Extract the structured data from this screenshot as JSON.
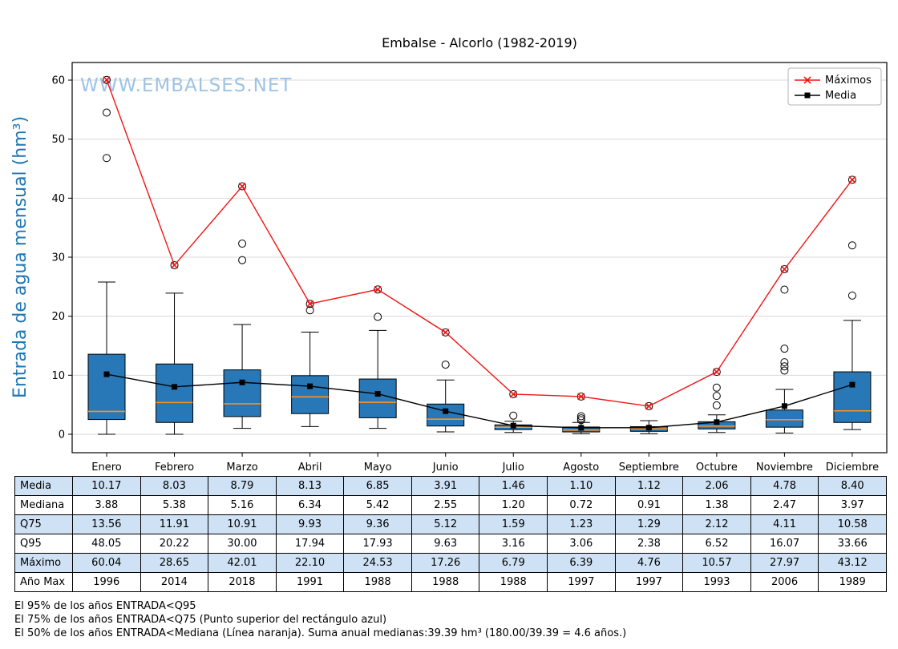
{
  "chart_data": {
    "type": "boxplot",
    "title": "Embalse - Alcorlo (1982-2019)",
    "ylabel": "Entrada de agua mensual (hm³)",
    "watermark": "WWW.EMBALSES.NET",
    "ylim": [
      -3,
      63
    ],
    "yticks": [
      0,
      10,
      20,
      30,
      40,
      50,
      60
    ],
    "grid": "horizontal",
    "legend_position": "top-right",
    "categories": [
      "Enero",
      "Febrero",
      "Marzo",
      "Abril",
      "Mayo",
      "Junio",
      "Julio",
      "Agosto",
      "Septiembre",
      "Octubre",
      "Noviembre",
      "Diciembre"
    ],
    "series": [
      {
        "name": "Máximos",
        "marker": "x",
        "color": "#ef1515",
        "values": [
          60.04,
          28.65,
          42.01,
          22.1,
          24.53,
          17.26,
          6.79,
          6.39,
          4.76,
          10.57,
          27.97,
          43.12
        ]
      },
      {
        "name": "Media",
        "marker": "square",
        "color": "#000000",
        "values": [
          10.17,
          8.03,
          8.79,
          8.13,
          6.85,
          3.91,
          1.46,
          1.1,
          1.12,
          2.06,
          4.78,
          8.4
        ]
      }
    ],
    "boxes": [
      {
        "month": "Enero",
        "q1": 2.5,
        "median": 3.88,
        "q3": 13.56,
        "lo": 0.0,
        "hi": 25.8,
        "outliers": [
          46.8,
          54.5,
          60.04
        ]
      },
      {
        "month": "Febrero",
        "q1": 2.0,
        "median": 5.38,
        "q3": 11.91,
        "lo": 0.0,
        "hi": 23.9,
        "outliers": [
          28.65
        ]
      },
      {
        "month": "Marzo",
        "q1": 3.0,
        "median": 5.16,
        "q3": 10.91,
        "lo": 1.0,
        "hi": 18.6,
        "outliers": [
          29.5,
          32.3,
          42.01
        ]
      },
      {
        "month": "Abril",
        "q1": 3.5,
        "median": 6.34,
        "q3": 9.93,
        "lo": 1.3,
        "hi": 17.3,
        "outliers": [
          21.0,
          22.1
        ]
      },
      {
        "month": "Mayo",
        "q1": 2.8,
        "median": 5.42,
        "q3": 9.36,
        "lo": 1.0,
        "hi": 17.6,
        "outliers": [
          19.9,
          24.53
        ]
      },
      {
        "month": "Junio",
        "q1": 1.4,
        "median": 2.55,
        "q3": 5.12,
        "lo": 0.4,
        "hi": 9.2,
        "outliers": [
          11.8,
          17.26
        ]
      },
      {
        "month": "Julio",
        "q1": 0.8,
        "median": 1.2,
        "q3": 1.59,
        "lo": 0.3,
        "hi": 2.2,
        "outliers": [
          3.16,
          6.79
        ]
      },
      {
        "month": "Agosto",
        "q1": 0.4,
        "median": 0.72,
        "q3": 1.23,
        "lo": 0.1,
        "hi": 2.0,
        "outliers": [
          2.4,
          2.7,
          3.06,
          6.39
        ]
      },
      {
        "month": "Septiembre",
        "q1": 0.5,
        "median": 0.91,
        "q3": 1.29,
        "lo": 0.1,
        "hi": 2.3,
        "outliers": [
          4.76
        ]
      },
      {
        "month": "Octubre",
        "q1": 0.9,
        "median": 1.38,
        "q3": 2.12,
        "lo": 0.3,
        "hi": 3.3,
        "outliers": [
          4.9,
          6.5,
          7.9,
          10.57
        ]
      },
      {
        "month": "Noviembre",
        "q1": 1.2,
        "median": 2.47,
        "q3": 4.11,
        "lo": 0.2,
        "hi": 7.6,
        "outliers": [
          10.8,
          11.5,
          12.2,
          14.5,
          24.5,
          27.97
        ]
      },
      {
        "month": "Diciembre",
        "q1": 2.0,
        "median": 3.97,
        "q3": 10.58,
        "lo": 0.8,
        "hi": 19.3,
        "outliers": [
          23.5,
          32.0,
          43.12
        ]
      }
    ],
    "colors": {
      "box_fill": "#2878b8",
      "median": "#ff9023",
      "grid": "#d9d9d9",
      "axis": "#000000",
      "ylabel": "#1f77b4",
      "watermark": "#9dc3e6",
      "table_alt_row": "#cfe2f5"
    }
  },
  "table": {
    "row_labels": [
      "Media",
      "Mediana",
      "Q75",
      "Q95",
      "Máximo",
      "Año Max"
    ],
    "rows": [
      [
        "10.17",
        "8.03",
        "8.79",
        "8.13",
        "6.85",
        "3.91",
        "1.46",
        "1.10",
        "1.12",
        "2.06",
        "4.78",
        "8.40"
      ],
      [
        "3.88",
        "5.38",
        "5.16",
        "6.34",
        "5.42",
        "2.55",
        "1.20",
        "0.72",
        "0.91",
        "1.38",
        "2.47",
        "3.97"
      ],
      [
        "13.56",
        "11.91",
        "10.91",
        "9.93",
        "9.36",
        "5.12",
        "1.59",
        "1.23",
        "1.29",
        "2.12",
        "4.11",
        "10.58"
      ],
      [
        "48.05",
        "20.22",
        "30.00",
        "17.94",
        "17.93",
        "9.63",
        "3.16",
        "3.06",
        "2.38",
        "6.52",
        "16.07",
        "33.66"
      ],
      [
        "60.04",
        "28.65",
        "42.01",
        "22.10",
        "24.53",
        "17.26",
        "6.79",
        "6.39",
        "4.76",
        "10.57",
        "27.97",
        "43.12"
      ],
      [
        "1996",
        "2014",
        "2018",
        "1991",
        "1988",
        "1988",
        "1988",
        "1997",
        "1997",
        "1993",
        "2006",
        "1989"
      ]
    ]
  },
  "footnotes": [
    "El 95% de los años ENTRADA<Q95",
    "El 75% de los años ENTRADA<Q75 (Punto superior del rectángulo azul)",
    "El 50% de los años ENTRADA<Mediana (Línea naranja). Suma anual medianas:39.39 hm³ (180.00/39.39 = 4.6 años.)"
  ]
}
